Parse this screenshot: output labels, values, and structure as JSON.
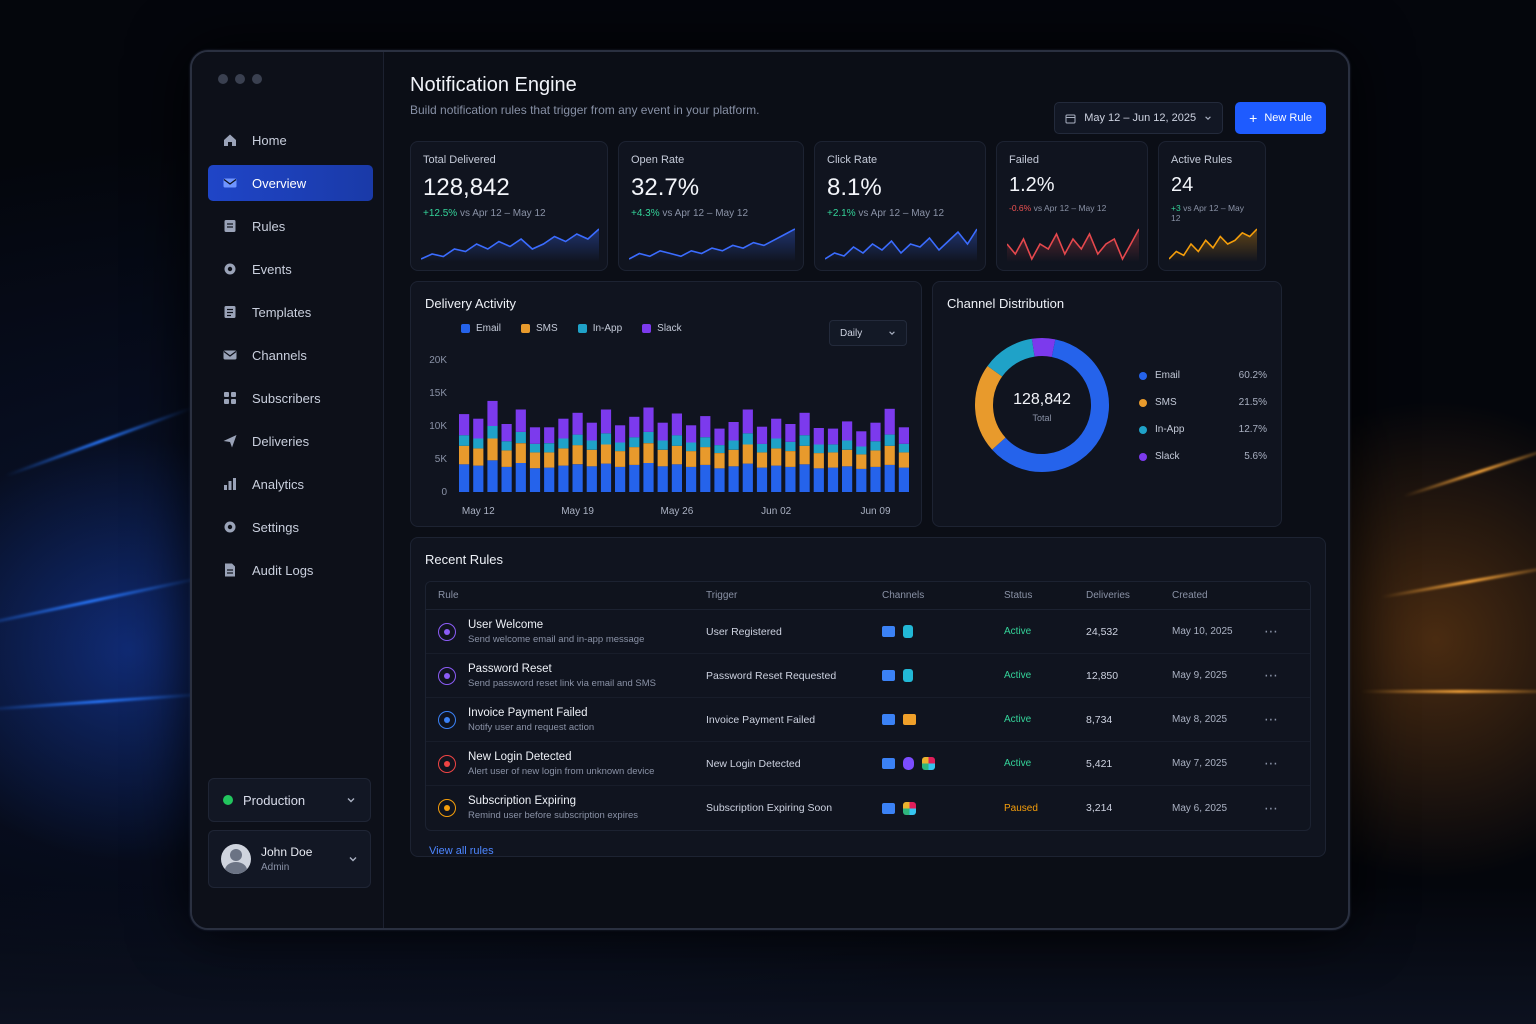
{
  "window": {
    "dots": 3
  },
  "sidebar": {
    "items": [
      {
        "label": "Home",
        "icon": "home-icon",
        "active": false
      },
      {
        "label": "Overview",
        "icon": "mail-icon",
        "active": true
      },
      {
        "label": "Rules",
        "icon": "rules-icon",
        "active": false
      },
      {
        "label": "Events",
        "icon": "gear-icon",
        "active": false
      },
      {
        "label": "Templates",
        "icon": "template-icon",
        "active": false
      },
      {
        "label": "Channels",
        "icon": "mail-icon",
        "active": false
      },
      {
        "label": "Subscribers",
        "icon": "users-icon",
        "active": false
      },
      {
        "label": "Deliveries",
        "icon": "send-icon",
        "active": false
      },
      {
        "label": "Analytics",
        "icon": "bar-chart-icon",
        "active": false
      },
      {
        "label": "Settings",
        "icon": "gear-icon",
        "active": false
      },
      {
        "label": "Audit Logs",
        "icon": "document-icon",
        "active": false
      }
    ],
    "environment": "Production",
    "user": {
      "name": "John Doe",
      "role": "Admin"
    }
  },
  "header": {
    "title": "Notification Engine",
    "subtitle": "Build notification rules that trigger from any event in your platform.",
    "date_range": "May 12 – Jun 12, 2025",
    "new_rule_label": "New Rule"
  },
  "kpis": [
    {
      "label": "Total Delivered",
      "value": "128,842",
      "delta": "+12.5%",
      "trend": "up",
      "period": "vs Apr 12 – May 12",
      "color": "#3b6cff",
      "spark": [
        8,
        10,
        9,
        12,
        11,
        14,
        12,
        15,
        13,
        16,
        12,
        14,
        17,
        15,
        18,
        16,
        20
      ]
    },
    {
      "label": "Open Rate",
      "value": "32.7%",
      "delta": "+4.3%",
      "trend": "up",
      "period": "vs Apr 12 – May 12",
      "color": "#3b6cff",
      "spark": [
        6,
        8,
        7,
        9,
        8,
        7,
        9,
        8,
        10,
        9,
        11,
        10,
        12,
        11,
        13,
        15,
        17
      ]
    },
    {
      "label": "Click Rate",
      "value": "8.1%",
      "delta": "+2.1%",
      "trend": "up",
      "period": "vs Apr 12 – May 12",
      "color": "#3b6cff",
      "spark": [
        7,
        9,
        8,
        11,
        9,
        12,
        10,
        13,
        9,
        12,
        11,
        14,
        10,
        13,
        16,
        12,
        17
      ]
    },
    {
      "label": "Failed",
      "value": "1.2%",
      "delta": "-0.6%",
      "trend": "down",
      "period": "vs Apr 12 – May 12",
      "color": "#e5484d",
      "spark": [
        12,
        10,
        13,
        9,
        12,
        11,
        14,
        10,
        13,
        11,
        14,
        10,
        12,
        13,
        9,
        12,
        15
      ]
    },
    {
      "label": "Active Rules",
      "value": "24",
      "delta": "+3",
      "trend": "up",
      "period": "vs Apr 12 – May 12",
      "color": "#f59e0b",
      "spark": [
        6,
        8,
        7,
        10,
        8,
        11,
        9,
        12,
        10,
        11,
        13,
        12,
        14
      ]
    }
  ],
  "activity": {
    "title": "Delivery Activity",
    "interval": "Daily"
  },
  "chart_data": {
    "type": "bar",
    "stacked": true,
    "title": "Delivery Activity",
    "xlabel": "",
    "ylabel": "",
    "ylim": [
      0,
      20000
    ],
    "yticks": [
      "20K",
      "15K",
      "10K",
      "5K",
      "0"
    ],
    "xticks": [
      "May 12",
      "May 19",
      "May 26",
      "Jun 02",
      "Jun 09"
    ],
    "legend_position": "top-left",
    "colors": {
      "Email": "#2563eb",
      "SMS": "#e89a2c",
      "In-App": "#1fa2c8",
      "Slack": "#7c3aed"
    },
    "series": [
      {
        "name": "Email",
        "values": [
          4200,
          4000,
          4800,
          3800,
          4400,
          3600,
          3700,
          4000,
          4200,
          3900,
          4300,
          3800,
          4100,
          4400,
          3900,
          4200,
          3800,
          4100,
          3600,
          3900,
          4300,
          3700,
          4000,
          3800,
          4200,
          3600,
          3700,
          3900,
          3500,
          3800,
          4100,
          3700
        ]
      },
      {
        "name": "SMS",
        "values": [
          2800,
          2600,
          3300,
          2500,
          3000,
          2400,
          2300,
          2600,
          2900,
          2500,
          2900,
          2400,
          2700,
          3000,
          2500,
          2800,
          2400,
          2700,
          2300,
          2500,
          2900,
          2300,
          2600,
          2400,
          2800,
          2300,
          2300,
          2500,
          2200,
          2500,
          2900,
          2300
        ]
      },
      {
        "name": "In-App",
        "values": [
          1600,
          1500,
          1900,
          1400,
          1700,
          1300,
          1400,
          1500,
          1600,
          1400,
          1700,
          1300,
          1500,
          1700,
          1400,
          1600,
          1300,
          1500,
          1200,
          1400,
          1700,
          1300,
          1500,
          1400,
          1600,
          1300,
          1200,
          1400,
          1200,
          1400,
          1700,
          1300
        ]
      },
      {
        "name": "Slack",
        "values": [
          3200,
          3000,
          3800,
          2600,
          3400,
          2500,
          2400,
          3000,
          3300,
          2700,
          3600,
          2600,
          3100,
          3700,
          2700,
          3300,
          2600,
          3200,
          2500,
          2800,
          3600,
          2600,
          3000,
          2700,
          3400,
          2500,
          2400,
          2900,
          2300,
          2800,
          3900,
          2500
        ]
      }
    ]
  },
  "distribution": {
    "title": "Channel Distribution",
    "total_value": "128,842",
    "total_label": "Total",
    "items": [
      {
        "name": "Email",
        "pct": "60.2%",
        "value": 60.2,
        "color": "#2563eb"
      },
      {
        "name": "SMS",
        "pct": "21.5%",
        "value": 21.5,
        "color": "#e89a2c"
      },
      {
        "name": "In-App",
        "pct": "12.7%",
        "value": 12.7,
        "color": "#1fa2c8"
      },
      {
        "name": "Slack",
        "pct": "5.6%",
        "value": 5.6,
        "color": "#7c3aed"
      }
    ]
  },
  "recent": {
    "title": "Recent Rules",
    "columns": [
      "Rule",
      "Trigger",
      "Channels",
      "Status",
      "Deliveries",
      "Created"
    ],
    "rows": [
      {
        "name": "User Welcome",
        "desc": "Send welcome email and in-app message",
        "trigger": "User Registered",
        "channels": [
          "email",
          "inapp"
        ],
        "status": "Active",
        "deliveries": "24,532",
        "created": "May 10, 2025",
        "icon_color": "#8b5cf6"
      },
      {
        "name": "Password Reset",
        "desc": "Send password reset link via email and SMS",
        "trigger": "Password Reset Requested",
        "channels": [
          "email",
          "inapp"
        ],
        "status": "Active",
        "deliveries": "12,850",
        "created": "May 9, 2025",
        "icon_color": "#8b5cf6"
      },
      {
        "name": "Invoice Payment Failed",
        "desc": "Notify user and request action",
        "trigger": "Invoice Payment Failed",
        "channels": [
          "email",
          "sms"
        ],
        "status": "Active",
        "deliveries": "8,734",
        "created": "May 8, 2025",
        "icon_color": "#3b82f6"
      },
      {
        "name": "New Login Detected",
        "desc": "Alert user of new login from unknown device",
        "trigger": "New Login Detected",
        "channels": [
          "email",
          "push",
          "slack"
        ],
        "status": "Active",
        "deliveries": "5,421",
        "created": "May 7, 2025",
        "icon_color": "#ef4444"
      },
      {
        "name": "Subscription Expiring",
        "desc": "Remind user before subscription expires",
        "trigger": "Subscription Expiring Soon",
        "channels": [
          "email",
          "slack"
        ],
        "status": "Paused",
        "deliveries": "3,214",
        "created": "May 6, 2025",
        "icon_color": "#f59e0b"
      }
    ],
    "view_all": "View all rules"
  }
}
